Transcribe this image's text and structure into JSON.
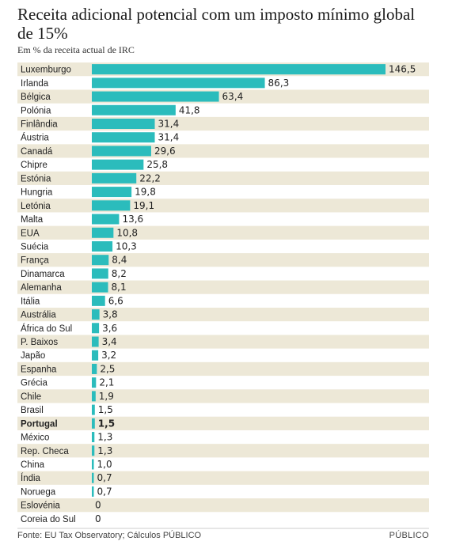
{
  "header": {
    "title": "Receita adicional potencial com um imposto mínimo global de 15%",
    "subtitle": "Em % da receita actual de IRC"
  },
  "footer": {
    "source": "Fonte: EU Tax Observatory; Cálculos PÚBLICO",
    "brand": "PÚBLICO"
  },
  "colors": {
    "bar": "#2bbcbc",
    "stripe": "#ede8d7",
    "text": "#222222"
  },
  "chart_data": {
    "type": "bar",
    "orientation": "horizontal",
    "highlight": "Portugal",
    "categories": [
      "Luxemburgo",
      "Irlanda",
      "Bélgica",
      "Polónia",
      "Finlândia",
      "Áustria",
      "Canadá",
      "Chipre",
      "Estónia",
      "Hungria",
      "Letónia",
      "Malta",
      "EUA",
      "Suécia",
      "França",
      "Dinamarca",
      "Alemanha",
      "Itália",
      "Austrália",
      "África do Sul",
      "P. Baixos",
      "Japão",
      "Espanha",
      "Grécia",
      "Chile",
      "Brasil",
      "Portugal",
      "México",
      "Rep. Checa",
      "China",
      "Índia",
      "Noruega",
      "Eslovénia",
      "Coreia do Sul"
    ],
    "values": [
      146.5,
      86.3,
      63.4,
      41.8,
      31.4,
      31.4,
      29.6,
      25.8,
      22.2,
      19.8,
      19.1,
      13.6,
      10.8,
      10.3,
      8.4,
      8.2,
      8.1,
      6.6,
      3.8,
      3.6,
      3.4,
      3.2,
      2.5,
      2.1,
      1.9,
      1.5,
      1.5,
      1.3,
      1.3,
      1.0,
      0.7,
      0.7,
      0,
      0
    ],
    "value_labels": [
      "146,5",
      "86,3",
      "63,4",
      "41,8",
      "31,4",
      "31,4",
      "29,6",
      "25,8",
      "22,2",
      "19,8",
      "19,1",
      "13,6",
      "10,8",
      "10,3",
      "8,4",
      "8,2",
      "8,1",
      "6,6",
      "3,8",
      "3,6",
      "3,4",
      "3,2",
      "2,5",
      "2,1",
      "1,9",
      "1,5",
      "1,5",
      "1,3",
      "1,3",
      "1,0",
      "0,7",
      "0,7",
      "0",
      "0"
    ],
    "xlim": [
      0,
      146.5
    ],
    "grid": false
  }
}
